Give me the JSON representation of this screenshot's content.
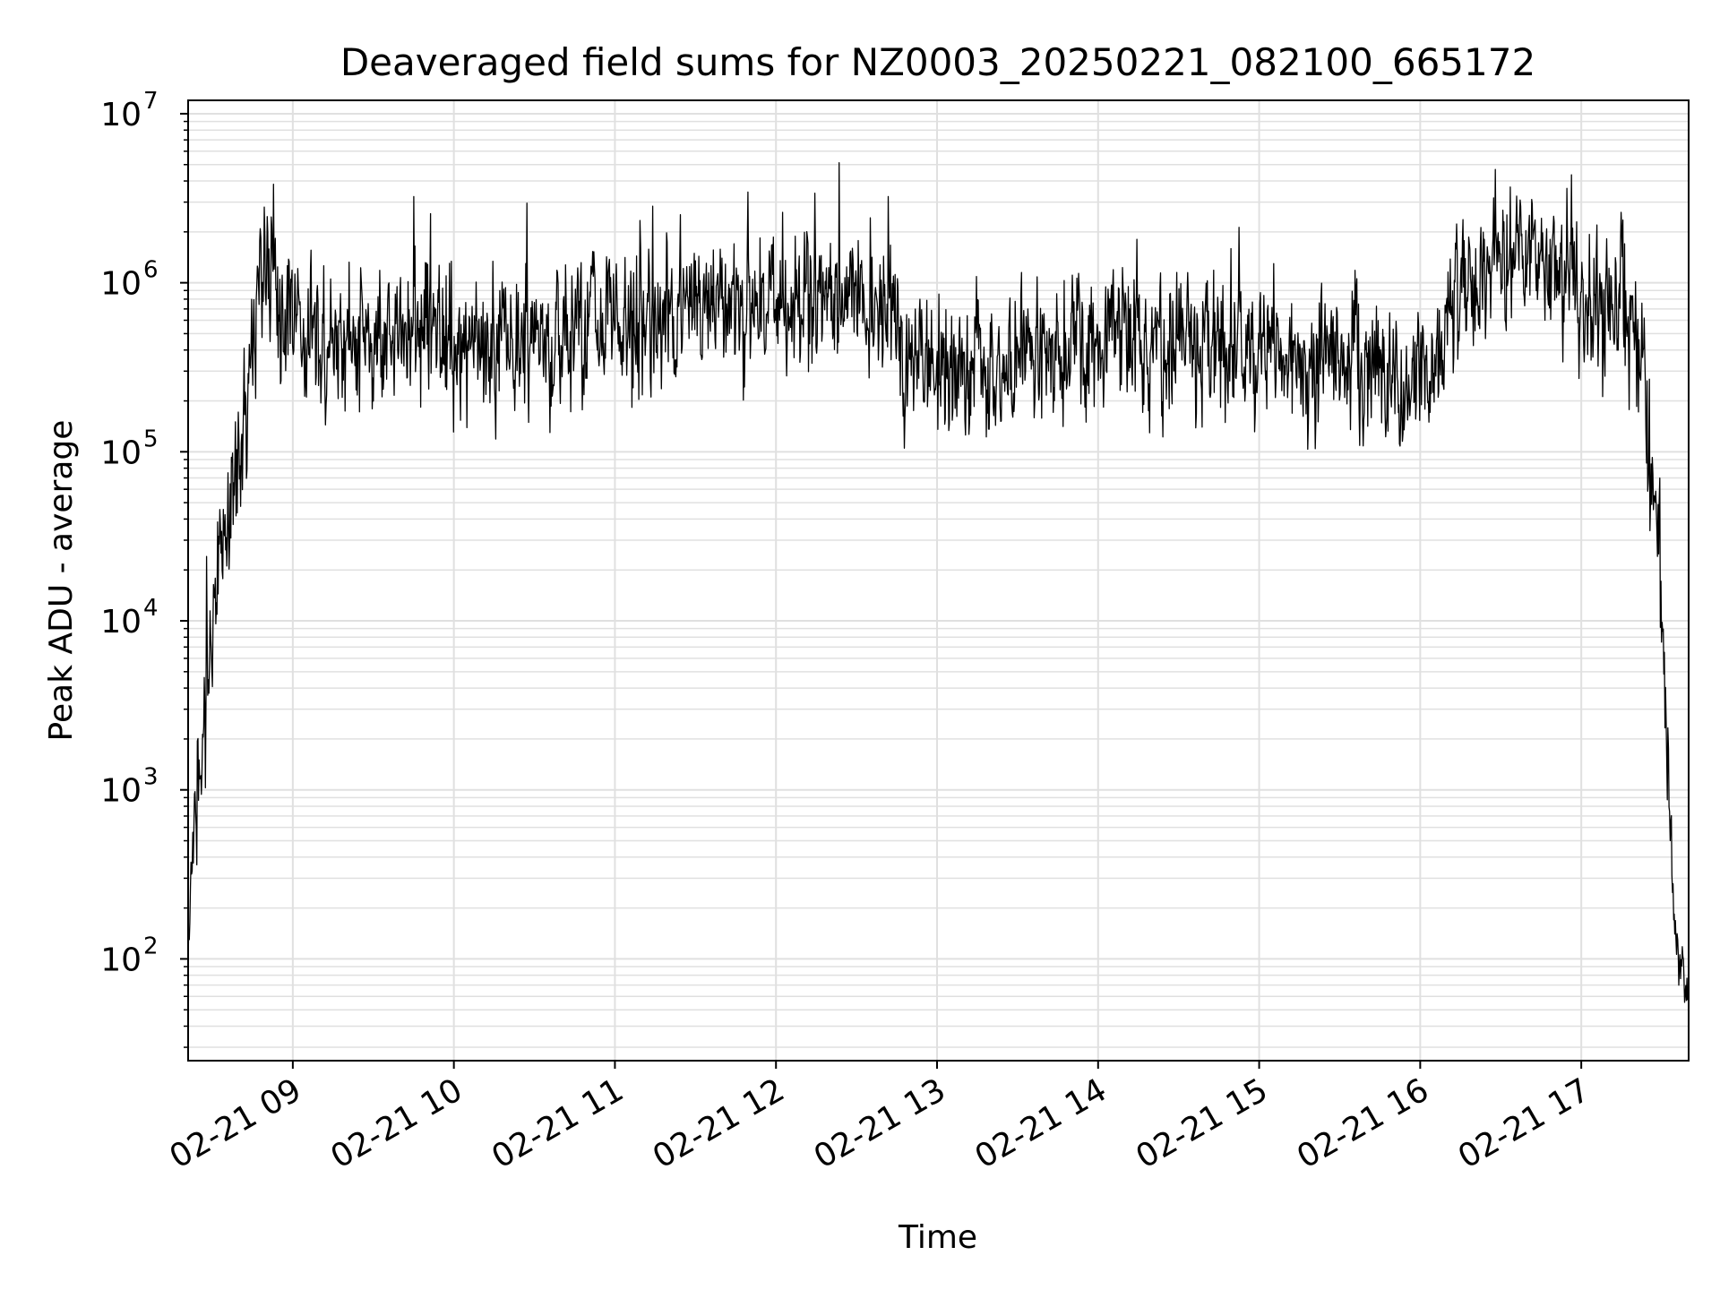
{
  "chart_data": {
    "type": "line",
    "title": "Deaveraged field sums for NZ0003_20250221_082100_665172",
    "xlabel": "Time",
    "ylabel": "Peak ADU - average",
    "y_scale": "log",
    "ylim": [
      25,
      12000000
    ],
    "xlim": [
      "2025-02-21 08:21",
      "2025-02-21 17:40"
    ],
    "grid": {
      "major": true,
      "minor_y": true,
      "color": "#e0e0e0"
    },
    "line_color": "#000000",
    "x_ticks": [
      {
        "t": "2025-02-21 09:00",
        "label": "02-21 09"
      },
      {
        "t": "2025-02-21 10:00",
        "label": "02-21 10"
      },
      {
        "t": "2025-02-21 11:00",
        "label": "02-21 11"
      },
      {
        "t": "2025-02-21 12:00",
        "label": "02-21 12"
      },
      {
        "t": "2025-02-21 13:00",
        "label": "02-21 13"
      },
      {
        "t": "2025-02-21 14:00",
        "label": "02-21 14"
      },
      {
        "t": "2025-02-21 15:00",
        "label": "02-21 15"
      },
      {
        "t": "2025-02-21 16:00",
        "label": "02-21 16"
      },
      {
        "t": "2025-02-21 17:00",
        "label": "02-21 17"
      }
    ],
    "y_ticks": [
      {
        "value": 100,
        "base": "10",
        "exp": "2"
      },
      {
        "value": 1000,
        "base": "10",
        "exp": "3"
      },
      {
        "value": 10000,
        "base": "10",
        "exp": "4"
      },
      {
        "value": 100000,
        "base": "10",
        "exp": "5"
      },
      {
        "value": 1000000,
        "base": "10",
        "exp": "6"
      },
      {
        "value": 10000000,
        "base": "10",
        "exp": "7"
      }
    ],
    "series": [
      {
        "noise_decades": 0.2,
        "x": [
          "2025-02-21 08:21",
          "2025-02-21 08:22",
          "2025-02-21 08:24",
          "2025-02-21 08:27",
          "2025-02-21 08:30",
          "2025-02-21 08:33",
          "2025-02-21 08:36",
          "2025-02-21 08:39",
          "2025-02-21 08:42",
          "2025-02-21 08:45",
          "2025-02-21 08:48",
          "2025-02-21 08:52",
          "2025-02-21 08:55",
          "2025-02-21 09:05",
          "2025-02-21 09:30",
          "2025-02-21 09:50",
          "2025-02-21 10:10",
          "2025-02-21 10:30",
          "2025-02-21 10:45",
          "2025-02-21 11:00",
          "2025-02-21 11:30",
          "2025-02-21 12:00",
          "2025-02-21 12:20",
          "2025-02-21 12:40",
          "2025-02-21 12:55",
          "2025-02-21 13:10",
          "2025-02-21 13:30",
          "2025-02-21 14:00",
          "2025-02-21 14:30",
          "2025-02-21 14:50",
          "2025-02-21 15:10",
          "2025-02-21 15:40",
          "2025-02-21 15:55",
          "2025-02-21 16:05",
          "2025-02-21 16:15",
          "2025-02-21 16:30",
          "2025-02-21 16:45",
          "2025-02-21 16:55",
          "2025-02-21 17:05",
          "2025-02-21 17:15",
          "2025-02-21 17:20",
          "2025-02-21 17:23",
          "2025-02-21 17:26",
          "2025-02-21 17:28",
          "2025-02-21 17:30",
          "2025-02-21 17:32",
          "2025-02-21 17:34",
          "2025-02-21 17:36",
          "2025-02-21 17:38",
          "2025-02-21 17:40"
        ],
        "y": [
          100,
          250,
          1000,
          3000,
          8000,
          20000,
          40000,
          70000,
          150000,
          400000,
          1000000,
          1500000,
          700000,
          450000,
          500000,
          550000,
          450000,
          450000,
          500000,
          600000,
          700000,
          750000,
          800000,
          650000,
          300000,
          250000,
          400000,
          500000,
          480000,
          400000,
          350000,
          330000,
          250000,
          300000,
          900000,
          1500000,
          1400000,
          1100000,
          700000,
          650000,
          600000,
          300000,
          100000,
          30000,
          8000,
          2000,
          300,
          100,
          70,
          65
        ]
      }
    ]
  }
}
